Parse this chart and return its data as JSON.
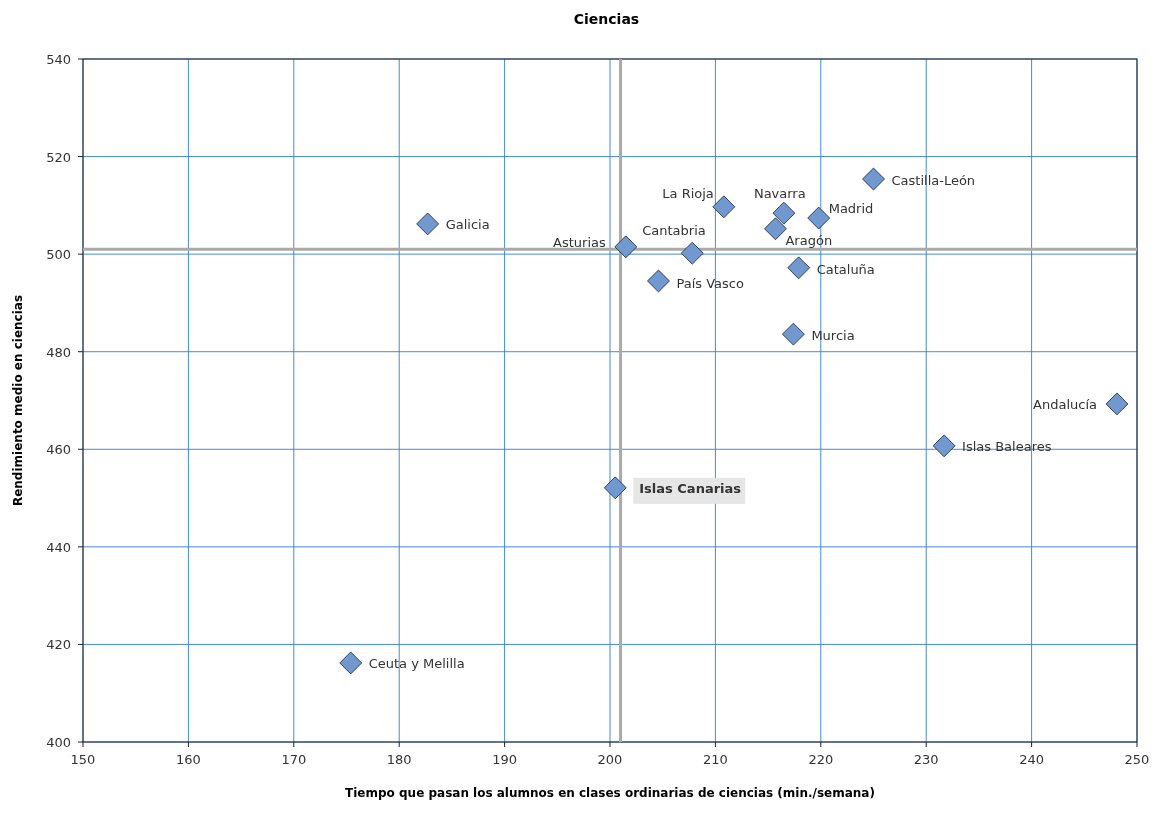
{
  "chart_data": {
    "type": "scatter",
    "title": "Ciencias",
    "xlabel": "Tiempo que pasan los alumnos en clases ordinarias de ciencias (min./semana)",
    "ylabel": "Rendimiento medio en ciencias",
    "xlim": [
      150,
      250
    ],
    "xticks": [
      150,
      160,
      170,
      180,
      190,
      200,
      210,
      220,
      230,
      240,
      250
    ],
    "ylim": [
      400,
      540
    ],
    "yticks": [
      400,
      420,
      440,
      460,
      480,
      500,
      520,
      540
    ],
    "grid": true,
    "marker": "diamond",
    "series": [
      {
        "color": "#7298d0",
        "x": [
          182.7,
          175.4,
          201.5,
          207.8,
          204.6,
          210.8,
          216.5,
          215.7,
          219.8,
          225.0,
          217.9,
          217.4,
          248.1,
          231.7,
          200.5
        ],
        "values": [
          506.2,
          416.2,
          501.5,
          500.2,
          494.5,
          509.7,
          508.4,
          505.2,
          507.4,
          515.4,
          497.2,
          483.6,
          469.3,
          460.7,
          452.1
        ]
      }
    ],
    "ref_lines": [
      {
        "axis": "x",
        "value": 201,
        "color": "#aaaaaa"
      },
      {
        "axis": "y",
        "value": 501,
        "color": "#aaaaaa"
      }
    ],
    "annotations": [
      {
        "text": "Galicia",
        "x": 182.7,
        "y": 506.2
      },
      {
        "text": "Ceuta y Melilla",
        "x": 175.4,
        "y": 416.2
      },
      {
        "text": "Asturias",
        "x": 201.5,
        "y": 501.5
      },
      {
        "text": "Cantabria",
        "x": 207.8,
        "y": 500.2
      },
      {
        "text": "País Vasco",
        "x": 204.6,
        "y": 494.5
      },
      {
        "text": "La Rioja",
        "x": 210.8,
        "y": 509.7
      },
      {
        "text": "Navarra",
        "x": 216.5,
        "y": 508.4
      },
      {
        "text": "Aragón",
        "x": 215.7,
        "y": 505.2
      },
      {
        "text": "Madrid",
        "x": 219.8,
        "y": 507.4
      },
      {
        "text": "Castilla-León",
        "x": 225.0,
        "y": 515.4
      },
      {
        "text": "Cataluña",
        "x": 217.9,
        "y": 497.2
      },
      {
        "text": "Murcia",
        "x": 217.4,
        "y": 483.6
      },
      {
        "text": "Andalucía",
        "x": 248.1,
        "y": 469.3
      },
      {
        "text": "Islas Baleares",
        "x": 231.7,
        "y": 460.7
      },
      {
        "text": "Islas Canarias",
        "x": 200.5,
        "y": 452.1
      }
    ]
  }
}
